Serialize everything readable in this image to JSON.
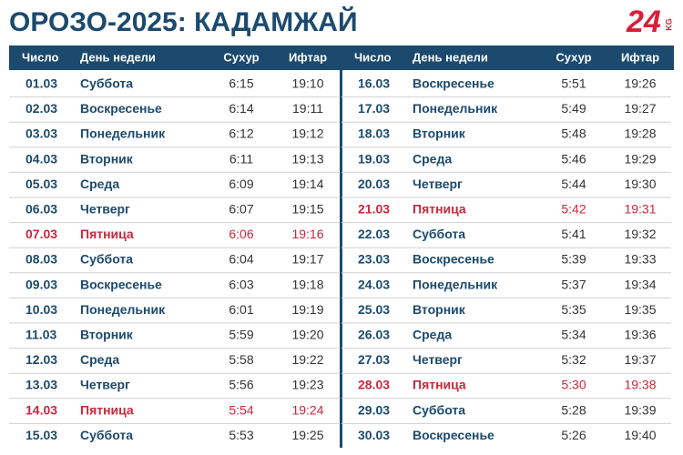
{
  "header": {
    "title": "ОРОЗО-2025: КАДАМЖАЙ",
    "logo": {
      "main": "24",
      "sub": "KG"
    }
  },
  "table": {
    "columns": [
      "Число",
      "День недели",
      "Сухур",
      "Ифтар"
    ],
    "default_color": "#1c4a6e",
    "time_color": "#333333",
    "halves": [
      {
        "rows": [
          {
            "date": "01.03",
            "day": "Суббота",
            "suhur": "6:15",
            "iftar": "19:10"
          },
          {
            "date": "02.03",
            "day": "Воскресенье",
            "suhur": "6:14",
            "iftar": "19:11"
          },
          {
            "date": "03.03",
            "day": "Понедельник",
            "suhur": "6:12",
            "iftar": "19:12"
          },
          {
            "date": "04.03",
            "day": "Вторник",
            "suhur": "6:11",
            "iftar": "19:13"
          },
          {
            "date": "05.03",
            "day": "Среда",
            "suhur": "6:09",
            "iftar": "19:14"
          },
          {
            "date": "06.03",
            "day": "Четверг",
            "suhur": "6:07",
            "iftar": "19:15"
          },
          {
            "date": "07.03",
            "day": "Пятница",
            "suhur": "6:06",
            "iftar": "19:16",
            "color": "#c8283c"
          },
          {
            "date": "08.03",
            "day": "Суббота",
            "suhur": "6:04",
            "iftar": "19:17"
          },
          {
            "date": "09.03",
            "day": "Воскресенье",
            "suhur": "6:03",
            "iftar": "19:18"
          },
          {
            "date": "10.03",
            "day": "Понедельник",
            "suhur": "6:01",
            "iftar": "19:19"
          },
          {
            "date": "11.03",
            "day": "Вторник",
            "suhur": "5:59",
            "iftar": "19:20"
          },
          {
            "date": "12.03",
            "day": "Среда",
            "suhur": "5:58",
            "iftar": "19:22"
          },
          {
            "date": "13.03",
            "day": "Четверг",
            "suhur": "5:56",
            "iftar": "19:23"
          },
          {
            "date": "14.03",
            "day": "Пятница",
            "suhur": "5:54",
            "iftar": "19:24",
            "color": "#c8283c"
          },
          {
            "date": "15.03",
            "day": "Суббота",
            "suhur": "5:53",
            "iftar": "19:25"
          }
        ]
      },
      {
        "rows": [
          {
            "date": "16.03",
            "day": "Воскресенье",
            "suhur": "5:51",
            "iftar": "19:26"
          },
          {
            "date": "17.03",
            "day": "Понедельник",
            "suhur": "5:49",
            "iftar": "19:27"
          },
          {
            "date": "18.03",
            "day": "Вторник",
            "suhur": "5:48",
            "iftar": "19:28"
          },
          {
            "date": "19.03",
            "day": "Среда",
            "suhur": "5:46",
            "iftar": "19:29"
          },
          {
            "date": "20.03",
            "day": "Четверг",
            "suhur": "5:44",
            "iftar": "19:30"
          },
          {
            "date": "21.03",
            "day": "Пятница",
            "suhur": "5:42",
            "iftar": "19:31",
            "color": "#c8283c"
          },
          {
            "date": "22.03",
            "day": "Суббота",
            "suhur": "5:41",
            "iftar": "19:32"
          },
          {
            "date": "23.03",
            "day": "Воскресенье",
            "suhur": "5:39",
            "iftar": "19:33"
          },
          {
            "date": "24.03",
            "day": "Понедельник",
            "suhur": "5:37",
            "iftar": "19:34"
          },
          {
            "date": "25.03",
            "day": "Вторник",
            "suhur": "5:35",
            "iftar": "19:35"
          },
          {
            "date": "26.03",
            "day": "Среда",
            "suhur": "5:34",
            "iftar": "19:36"
          },
          {
            "date": "27.03",
            "day": "Четверг",
            "suhur": "5:32",
            "iftar": "19:37"
          },
          {
            "date": "28.03",
            "day": "Пятница",
            "suhur": "5:30",
            "iftar": "19:38",
            "color": "#c8283c"
          },
          {
            "date": "29.03",
            "day": "Суббота",
            "suhur": "5:28",
            "iftar": "19:39"
          },
          {
            "date": "30.03",
            "day": "Воскресенье",
            "suhur": "5:26",
            "iftar": "19:40"
          }
        ]
      }
    ]
  }
}
